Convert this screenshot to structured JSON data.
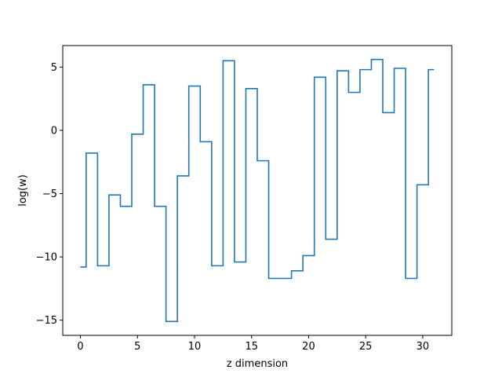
{
  "chart_data": {
    "type": "line",
    "drawstyle": "steps-mid",
    "title": "",
    "xlabel": "z dimension",
    "ylabel": "log(w)",
    "xlim": [
      -1.55,
      32.55
    ],
    "ylim": [
      -16.2,
      6.7
    ],
    "xticks": [
      0,
      5,
      10,
      15,
      20,
      25,
      30
    ],
    "yticks": [
      -15,
      -10,
      -5,
      0,
      5
    ],
    "grid": false,
    "legend": "none",
    "series": [
      {
        "color": "#1f77b4",
        "x": [
          0,
          1,
          2,
          3,
          4,
          5,
          6,
          7,
          8,
          9,
          10,
          11,
          12,
          13,
          14,
          15,
          16,
          17,
          18,
          19,
          20,
          21,
          22,
          23,
          24,
          25,
          26,
          27,
          28,
          29,
          30,
          31
        ],
        "values": [
          -10.8,
          -1.8,
          -10.7,
          -5.1,
          -6.0,
          -0.3,
          3.6,
          -6.0,
          -15.1,
          -3.6,
          3.5,
          -0.9,
          -10.7,
          5.5,
          -10.4,
          3.3,
          -2.4,
          -11.7,
          -11.7,
          -11.1,
          -9.9,
          4.2,
          -8.6,
          4.7,
          3.0,
          4.8,
          5.6,
          1.4,
          4.9,
          -11.7,
          -4.3,
          4.8
        ]
      }
    ]
  }
}
